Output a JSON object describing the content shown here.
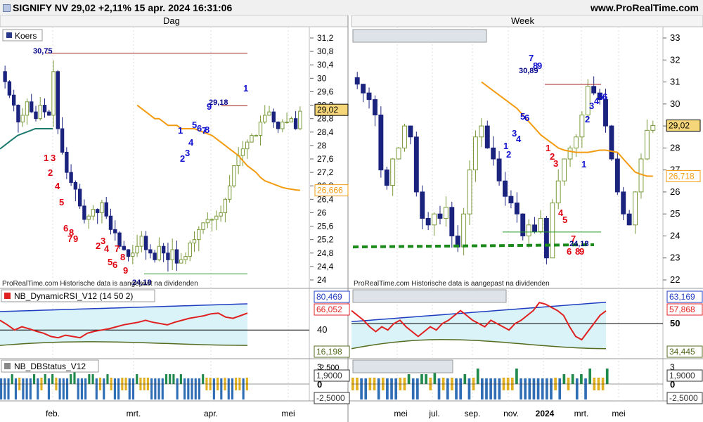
{
  "header": {
    "title": "SIGNIFY NV 29,02 +2,11% 15 apr. 2024 16:31:06",
    "site": "www.ProRealTime.com"
  },
  "colors": {
    "bull": "#7a9a3a",
    "bear": "#1a237e",
    "ema_fast": "#1f7a6e",
    "ema_slow": "#f39c12",
    "count_sell": "#e0000f",
    "count_buy": "#1010d0",
    "rsi_line": "#e02020",
    "band_upper": "#1e3cc0",
    "band_lower": "#556b1f",
    "cloud": "#d9f3f8",
    "status_green": "#1f8a4c",
    "status_blue": "#2f6db5",
    "status_yellow": "#e0b020"
  },
  "panels": {
    "daily": {
      "header": "Dag",
      "legend": "Koers",
      "watermark": "ProRealTime.com Historische data is aangepast na dividenden",
      "price_tag": "29,02",
      "ema_tag": "26,666",
      "high_label": "30,75",
      "resist_label": "29,18",
      "low_label": "24,18",
      "x_labels": [
        "feb.",
        "mrt.",
        "apr.",
        "mei"
      ],
      "rsi_title": "NB_DynamicRSI_V12 (14 50 2)",
      "rsi_tags": {
        "upper": "80,469",
        "rsi": "66,052",
        "mid": "40",
        "lower": "16,198"
      },
      "status_title": "NB_DBStatus_V12",
      "status_tags": {
        "top": "3",
        "up": "2,500",
        "one": "1,9000",
        "zero": "0",
        "down": "-2,5000"
      }
    },
    "weekly": {
      "header": "Week",
      "watermark": "ProRealTime.com Historische data is aangepast na dividenden",
      "price_tag": "29,02",
      "ema_tag": "26,718",
      "high_label": "30,89",
      "low_label": "24,18",
      "x_labels": [
        "mei",
        "jul.",
        "sep.",
        "nov.",
        "2024",
        "mrt.",
        "mei"
      ],
      "rsi_tags": {
        "upper": "63,169",
        "rsi": "57,868",
        "mid": "50",
        "lower": "34,445"
      },
      "status_tags": {
        "top": "3",
        "one": "1,9000",
        "zero": "0",
        "down": "-2,5000"
      }
    }
  },
  "chart_data": [
    {
      "type": "candlestick",
      "timeframe": "Dag",
      "y_ticks": [
        "31,2",
        "30,8",
        "30,4",
        "30",
        "29,6",
        "29,2",
        "28,8",
        "28,4",
        "28",
        "27,6",
        "27,2",
        "26,8",
        "26,4",
        "26",
        "25,6",
        "25,2",
        "24,8",
        "24,4",
        "24"
      ],
      "ylim": [
        24,
        31.2
      ],
      "close": [
        29.9,
        29.5,
        29.2,
        28.7,
        28.9,
        29.3,
        29.0,
        28.8,
        29.2,
        29.0,
        28.9,
        30.2,
        28.5,
        27.8,
        27.2,
        26.9,
        26.7,
        26.2,
        25.8,
        25.9,
        26.1,
        26.0,
        26.3,
        25.9,
        25.5,
        25.4,
        25.0,
        24.9,
        24.7,
        24.8,
        25.0,
        25.3,
        24.9,
        24.8,
        24.6,
        25.0,
        24.8,
        24.6,
        24.9,
        24.5,
        24.6,
        24.7,
        25.1,
        25.2,
        25.5,
        25.7,
        25.8,
        25.8,
        25.9,
        26.0,
        26.4,
        26.8,
        27.4,
        27.7,
        27.9,
        28.1,
        28.3,
        28.3,
        28.7,
        28.9,
        29.0,
        28.7,
        28.5,
        28.7,
        28.7,
        28.8,
        28.5,
        29.02
      ],
      "ema_slow": [
        29.2,
        29.1,
        29.0,
        28.9,
        28.8,
        28.8,
        28.7,
        28.6,
        28.6,
        28.6,
        28.5,
        28.5,
        28.5,
        28.5,
        28.45,
        28.4,
        28.35,
        28.3,
        28.2,
        28.1,
        28.0,
        27.9,
        27.8,
        27.7,
        27.55,
        27.4,
        27.3,
        27.2,
        27.05,
        26.95,
        26.9,
        26.85,
        26.8,
        26.75,
        26.72,
        26.7,
        26.68,
        26.666
      ],
      "dma_fast": [
        27.9,
        28.0,
        28.1,
        28.2,
        28.3,
        28.35,
        28.4,
        28.45,
        28.5,
        28.5,
        28.5,
        28.5,
        28.5
      ],
      "resistance": 30.75,
      "resistance2": 29.18,
      "support": 24.18,
      "rsi": [
        55,
        48,
        40,
        45,
        42,
        38,
        35,
        30,
        28,
        32,
        30,
        28,
        35,
        38,
        40,
        42,
        45,
        48,
        50,
        52,
        55,
        52,
        50,
        48,
        52,
        55,
        58,
        60,
        62,
        65,
        66,
        60,
        58,
        62,
        66.052
      ],
      "rsi_ylim": [
        0,
        100
      ],
      "rsi_upper_band": 80.469,
      "rsi_lower_band": 16.198,
      "rsi_mid": 40
    },
    {
      "type": "candlestick",
      "timeframe": "Week",
      "y_ticks": [
        "33",
        "32",
        "31",
        "30",
        "29",
        "28",
        "27",
        "26",
        "25",
        "24",
        "23",
        "22"
      ],
      "ylim": [
        22,
        33
      ],
      "close": [
        30.9,
        30.5,
        30.2,
        29.5,
        27.0,
        26.3,
        27.5,
        28.0,
        29.0,
        28.5,
        26.0,
        24.8,
        24.5,
        25.0,
        24.8,
        25.3,
        24.0,
        23.5,
        25.0,
        27.0,
        28.5,
        29.0,
        28.0,
        27.5,
        26.5,
        25.8,
        25.5,
        25.0,
        24.0,
        24.5,
        24.2,
        24.8,
        23.0,
        25.5,
        26.5,
        27.5,
        28.0,
        28.5,
        29.5,
        30.8,
        30.5,
        30.2,
        29.0,
        27.5,
        26.0,
        25.0,
        24.5,
        26.0,
        27.5,
        28.8,
        29.02
      ],
      "ema_slow": [
        31.0,
        30.8,
        30.6,
        30.4,
        30.2,
        30.0,
        29.8,
        29.5,
        29.2,
        28.9,
        28.6,
        28.4,
        28.2,
        28.0,
        27.9,
        27.85,
        27.8,
        27.8,
        27.8,
        27.85,
        27.9,
        27.9,
        27.85,
        27.8,
        27.5,
        27.2,
        26.9,
        26.8,
        26.72,
        26.718
      ],
      "resistance": 30.89,
      "support": 24.18,
      "support_trend": [
        23.5,
        23.6
      ],
      "rsi": [
        58,
        55,
        52,
        48,
        45,
        48,
        46,
        50,
        52,
        48,
        45,
        42,
        45,
        48,
        46,
        50,
        52,
        55,
        58,
        55,
        52,
        50,
        48,
        52,
        50,
        48,
        46,
        50,
        52,
        55,
        58,
        63,
        62,
        60,
        58,
        55,
        48,
        42,
        40,
        45,
        50,
        55,
        57.868
      ],
      "rsi_ylim": [
        30,
        70
      ],
      "rsi_upper_band": 63.169,
      "rsi_lower_band": 34.445,
      "rsi_mid": 50
    }
  ]
}
